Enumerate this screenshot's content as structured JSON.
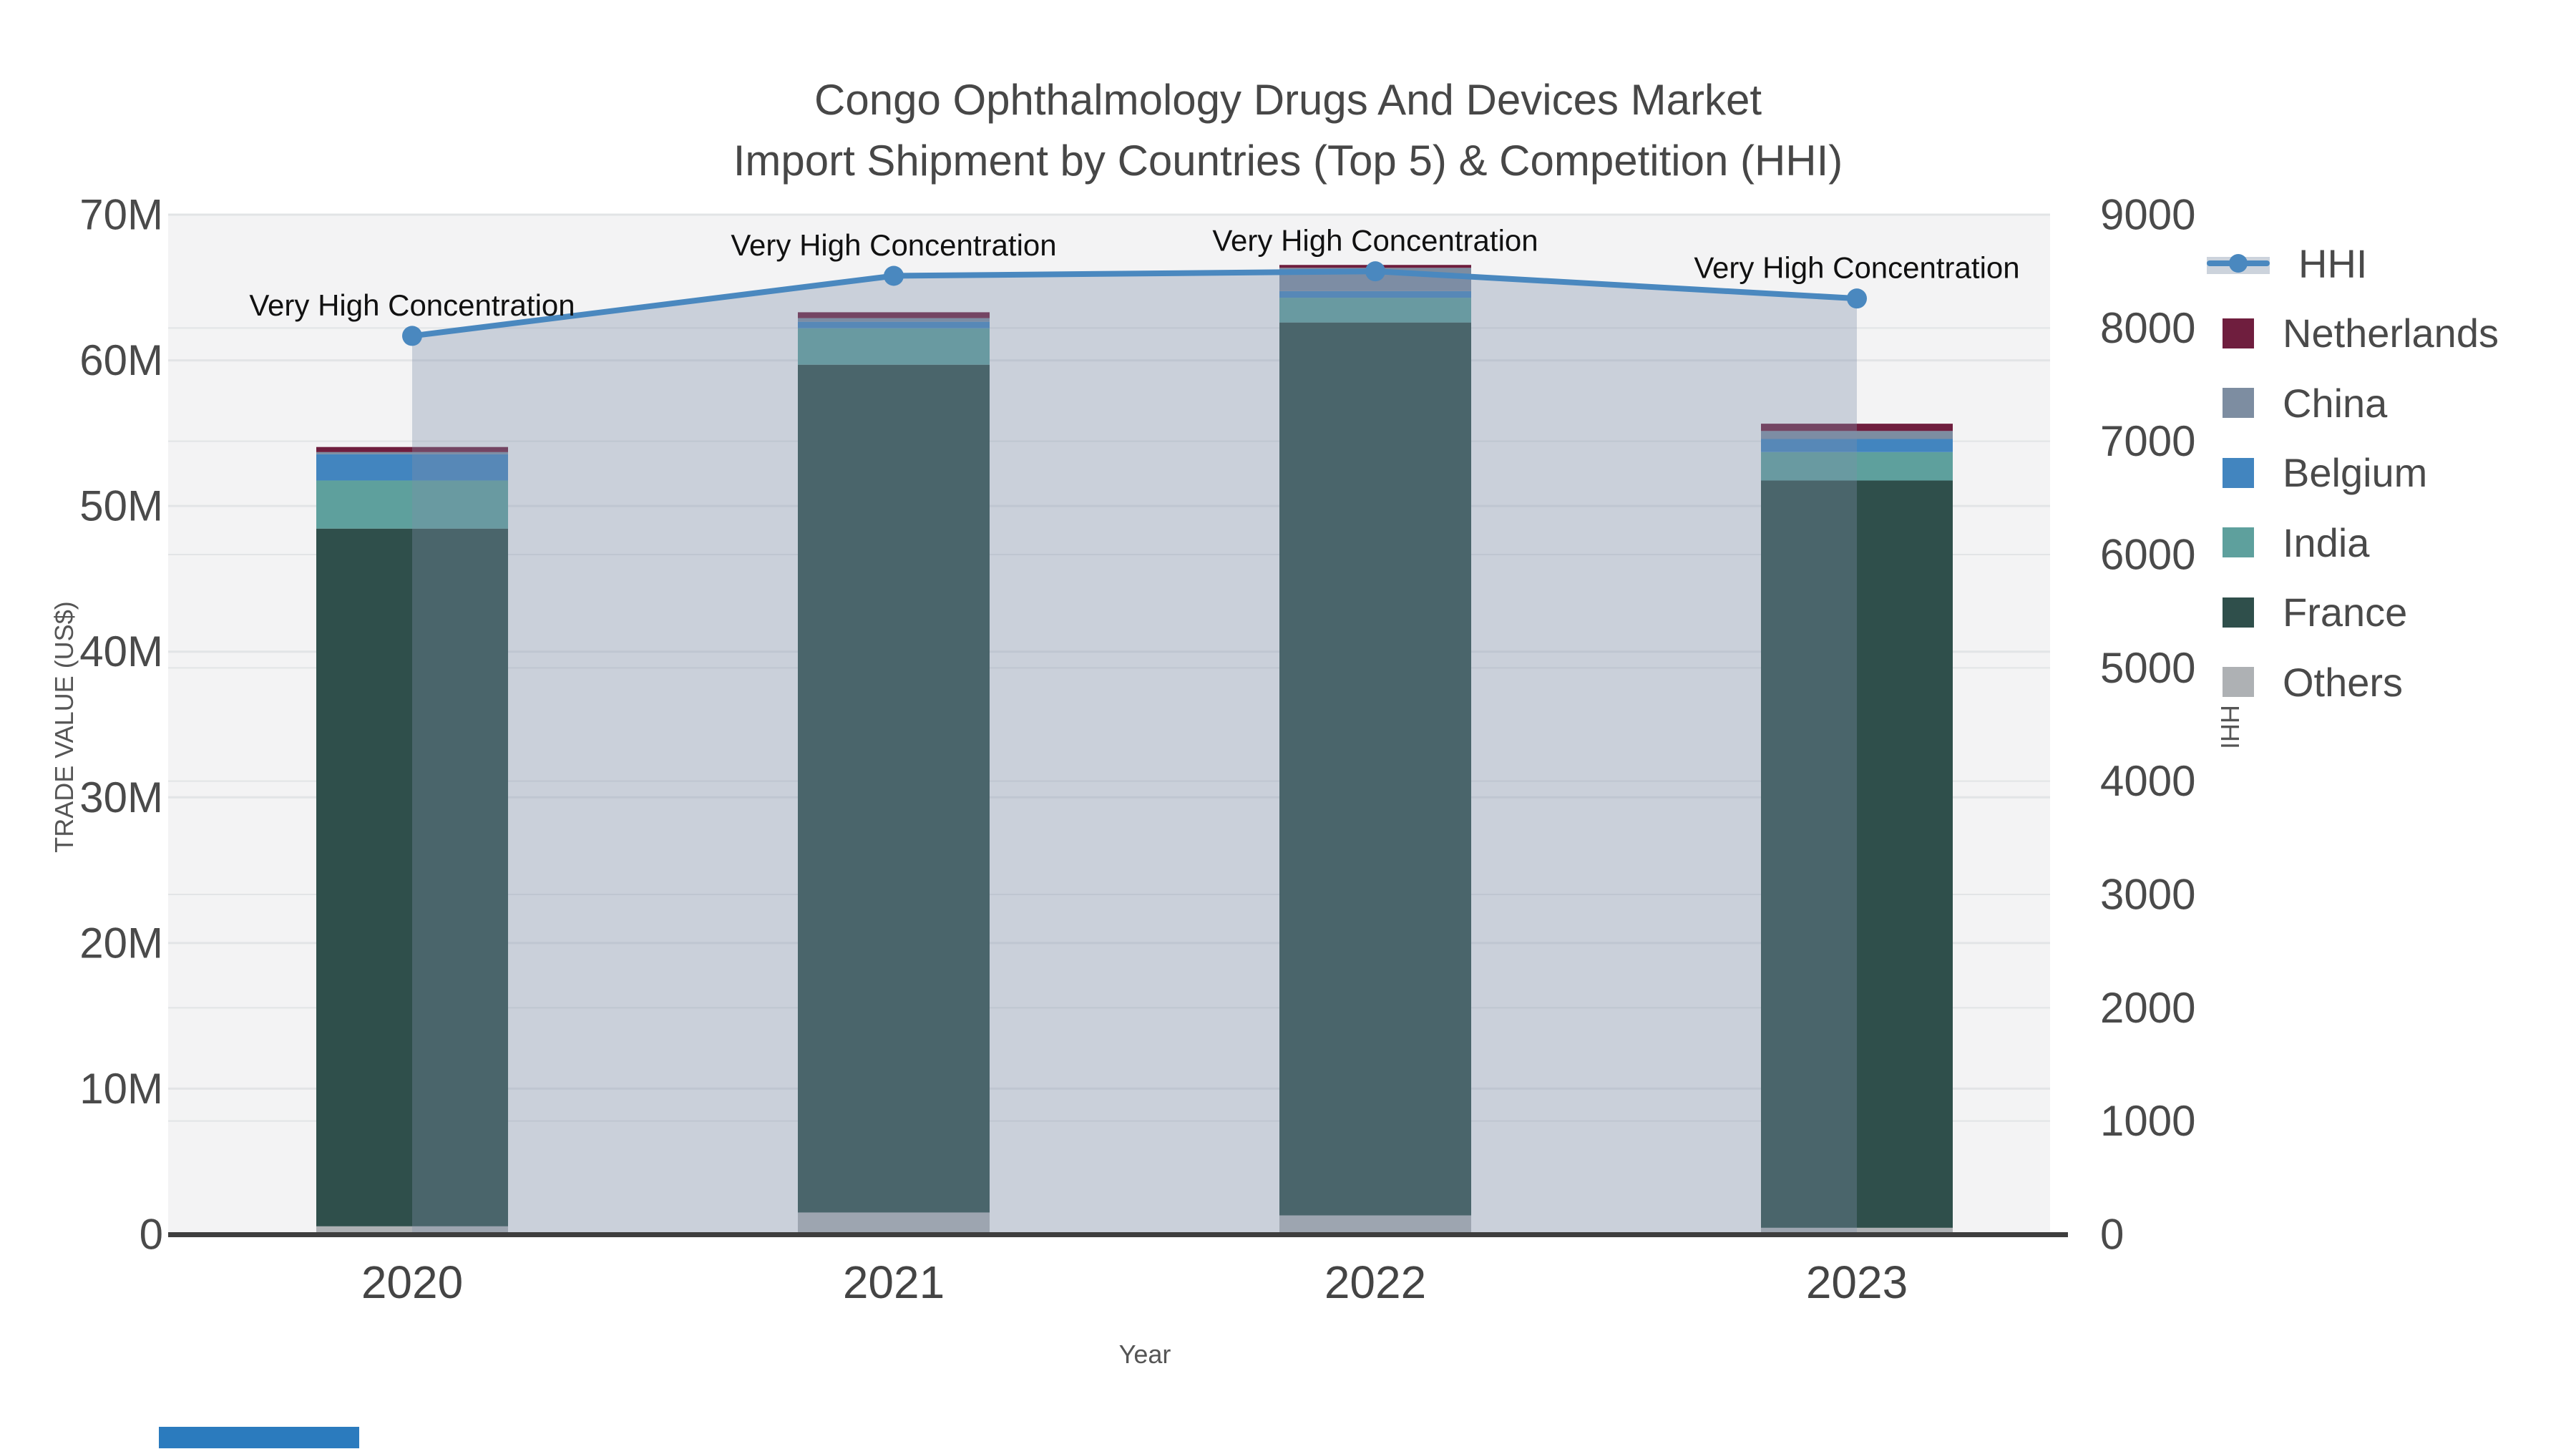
{
  "title": {
    "line1": "Congo Ophthalmology Drugs And Devices Market",
    "line2": "Import Shipment by Countries (Top 5) & Competition (HHI)"
  },
  "axes": {
    "y_left": {
      "title": "TRADE VALUE (US$)",
      "tick_labels": [
        "0",
        "10M",
        "20M",
        "30M",
        "40M",
        "50M",
        "60M",
        "70M"
      ],
      "min": 0,
      "max": 70,
      "step": 10,
      "unit": "million US$"
    },
    "y_right": {
      "title": "HHI",
      "tick_labels": [
        "0",
        "1000",
        "2000",
        "3000",
        "4000",
        "5000",
        "6000",
        "7000",
        "8000",
        "9000"
      ],
      "min": 0,
      "max": 9000,
      "step": 1000
    },
    "x": {
      "title": "Year",
      "categories": [
        "2020",
        "2021",
        "2022",
        "2023"
      ]
    }
  },
  "legend": {
    "items": [
      {
        "label": "HHI",
        "type": "line",
        "color": "#4a88bf"
      },
      {
        "label": "Netherlands",
        "type": "bar",
        "color": "#6f1e3e"
      },
      {
        "label": "China",
        "type": "bar",
        "color": "#7d8da1"
      },
      {
        "label": "Belgium",
        "type": "bar",
        "color": "#4285bf"
      },
      {
        "label": "India",
        "type": "bar",
        "color": "#5ea09d"
      },
      {
        "label": "France",
        "type": "bar",
        "color": "#2f4f4b"
      },
      {
        "label": "Others",
        "type": "bar",
        "color": "#aeb1b4"
      }
    ]
  },
  "annotations": [
    {
      "text": "Very High Concentration",
      "year": "2020"
    },
    {
      "text": "Very High Concentration",
      "year": "2021"
    },
    {
      "text": "Very High Concentration",
      "year": "2022"
    },
    {
      "text": "Very High Concentration",
      "year": "2023"
    }
  ],
  "chart_data": {
    "type": "bar+line",
    "title": "Congo Ophthalmology Drugs And Devices Market — Import Shipment by Countries (Top 5) & Competition (HHI)",
    "categories": [
      "2020",
      "2021",
      "2022",
      "2023"
    ],
    "values_unit": "million US$",
    "stack_order_bottom_to_top": [
      "Others",
      "France",
      "India",
      "Belgium",
      "China",
      "Netherlands"
    ],
    "series": [
      {
        "name": "Netherlands",
        "values": [
          0.35,
          0.4,
          0.2,
          0.5
        ]
      },
      {
        "name": "China",
        "values": [
          0.15,
          0.25,
          1.6,
          0.55
        ]
      },
      {
        "name": "Belgium",
        "values": [
          1.8,
          0.45,
          0.45,
          0.9
        ]
      },
      {
        "name": "India",
        "values": [
          3.3,
          2.5,
          1.7,
          1.95
        ]
      },
      {
        "name": "France",
        "values": [
          47.9,
          58.2,
          61.3,
          51.3
        ]
      },
      {
        "name": "Others",
        "values": [
          0.55,
          1.5,
          1.3,
          0.45
        ]
      }
    ],
    "bar_totals": [
      54.05,
      63.3,
      66.55,
      55.65
    ],
    "line_series": {
      "name": "HHI",
      "axis": "right",
      "values": [
        7930,
        8460,
        8500,
        8260
      ]
    },
    "xlabel": "Year",
    "ylabel_left": "TRADE VALUE (US$)",
    "ylabel_right": "HHI",
    "ylim_left": [
      0,
      70000000
    ],
    "ylim_right": [
      0,
      9000
    ],
    "grid": true,
    "legend_position": "right"
  },
  "colors": {
    "hhi_line": "#4a88bf",
    "hhi_area_fill": "rgba(125,143,168,0.35)",
    "netherlands": "#6f1e3e",
    "china": "#7d8da1",
    "belgium": "#4285bf",
    "india": "#5ea09d",
    "france": "#2f4f4b",
    "others": "#aeb1b4",
    "plot_background": "#f3f3f4",
    "gridline": "#e2e4e6",
    "axis_line": "#3e3e3e",
    "tick_text": "#4a4a4a",
    "annotation_text": "#111111",
    "brand_bar": "#2b7bbe"
  }
}
